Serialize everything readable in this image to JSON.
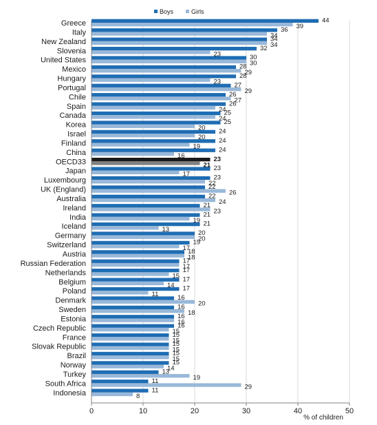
{
  "chart_data": {
    "type": "bar",
    "orientation": "horizontal",
    "categories": [
      "Greece",
      "Italy",
      "New Zealand",
      "Slovenia",
      "United States",
      "Mexico",
      "Hungary",
      "Portugal",
      "Chile",
      "Spain",
      "Canada",
      "Korea",
      "Israel",
      "Finland",
      "China",
      "OECD33",
      "Japan",
      "Luxembourg",
      "UK (England)",
      "Australia",
      "Ireland",
      "India",
      "Iceland",
      "Germany",
      "Switzerland",
      "Austria",
      "Russian Federation",
      "Netherlands",
      "Belgium",
      "Poland",
      "Denmark",
      "Sweden",
      "Estonia",
      "Czech Republic",
      "France",
      "Slovak Republic",
      "Brazil",
      "Norway",
      "Turkey",
      "South Africa",
      "Indonesia"
    ],
    "highlight_category": "OECD33",
    "series": [
      {
        "name": "Boys",
        "color": "#1f6db3",
        "highlight_color": "#1a1a1a",
        "values": [
          44,
          36,
          34,
          32,
          30,
          28,
          28,
          27,
          26,
          26,
          25,
          25,
          24,
          24,
          24,
          23,
          23,
          23,
          22,
          22,
          21,
          21,
          21,
          20,
          19,
          18,
          17,
          17,
          17,
          17,
          16,
          16,
          16,
          16,
          15,
          15,
          15,
          15,
          13,
          11,
          11
        ]
      },
      {
        "name": "Girls",
        "color": "#99b8d9",
        "highlight_color": "#808080",
        "values": [
          39,
          34,
          34,
          23,
          30,
          29,
          23,
          29,
          27,
          24,
          24,
          20,
          20,
          19,
          16,
          21,
          17,
          22,
          26,
          24,
          23,
          19,
          13,
          20,
          17,
          18,
          17,
          15,
          14,
          11,
          20,
          18,
          16,
          15,
          15,
          15,
          15,
          14,
          19,
          29,
          8
        ]
      }
    ],
    "xlabel": "% of children",
    "xlim": [
      0,
      50
    ],
    "xticks": [
      0,
      10,
      20,
      30,
      40,
      50
    ],
    "grid": "vertical",
    "legend_position": "top"
  }
}
